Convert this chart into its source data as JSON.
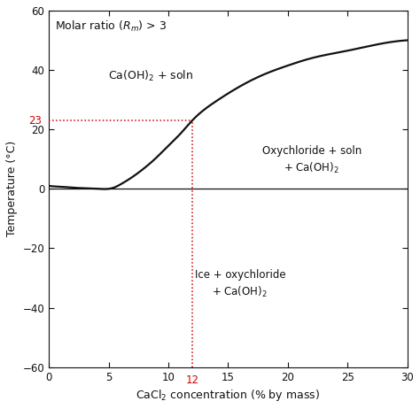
{
  "title": "Molar ratio ($R_m$) > 3",
  "xlabel": "CaCl$_2$ concentration (% by mass)",
  "ylabel": "Temperature (°C)",
  "xlim": [
    0,
    30
  ],
  "ylim": [
    -60,
    60
  ],
  "xticks": [
    0,
    5,
    10,
    15,
    20,
    25,
    30
  ],
  "yticks": [
    -60,
    -40,
    -20,
    0,
    20,
    40,
    60
  ],
  "curve_color": "#111111",
  "hline_y": 0,
  "hline_color": "#111111",
  "dotted_x": 12,
  "dotted_y": 23,
  "dotted_color": "#cc0000",
  "bg_color": "#ffffff",
  "curve_points_x": [
    0,
    0.5,
    1,
    2,
    3,
    4,
    5,
    5.5,
    6,
    7,
    8,
    9,
    10,
    11,
    12,
    14,
    16,
    18,
    20,
    22,
    25,
    28,
    30
  ],
  "curve_points_y": [
    1.0,
    0.8,
    0.7,
    0.4,
    0.2,
    0.05,
    0.0,
    0.5,
    1.5,
    4.0,
    7.0,
    10.5,
    14.5,
    18.5,
    23.0,
    29.5,
    34.5,
    38.5,
    41.5,
    44.0,
    46.5,
    49.0,
    50.0
  ]
}
